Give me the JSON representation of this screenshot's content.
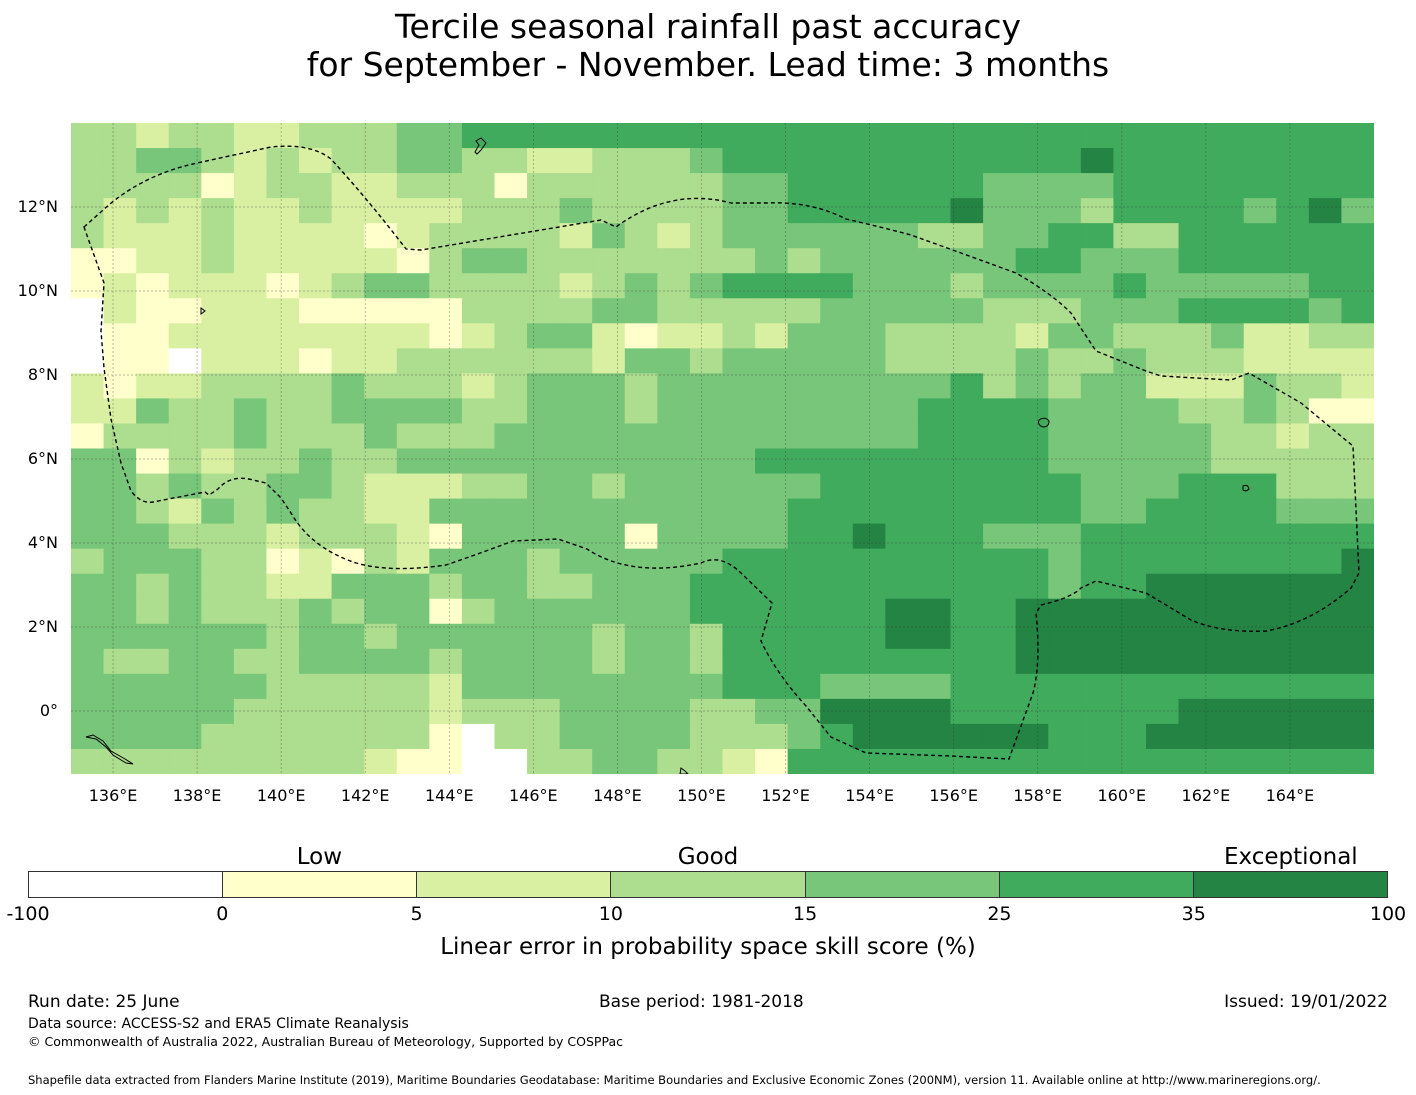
{
  "title": {
    "line1": "Tercile seasonal rainfall past accuracy",
    "line2": "for September - November. Lead time: 3 months"
  },
  "map": {
    "lat_labels": [
      {
        "text": "12°N",
        "lat": 12
      },
      {
        "text": "10°N",
        "lat": 10
      },
      {
        "text": "8°N",
        "lat": 8
      },
      {
        "text": "6°N",
        "lat": 6
      },
      {
        "text": "4°N",
        "lat": 4
      },
      {
        "text": "2°N",
        "lat": 2
      },
      {
        "text": "0°",
        "lat": 0
      }
    ],
    "lon_labels": [
      {
        "text": "136°E",
        "lon": 136
      },
      {
        "text": "138°E",
        "lon": 138
      },
      {
        "text": "140°E",
        "lon": 140
      },
      {
        "text": "142°E",
        "lon": 142
      },
      {
        "text": "144°E",
        "lon": 144
      },
      {
        "text": "146°E",
        "lon": 146
      },
      {
        "text": "148°E",
        "lon": 148
      },
      {
        "text": "150°E",
        "lon": 150
      },
      {
        "text": "152°E",
        "lon": 152
      },
      {
        "text": "154°E",
        "lon": 154
      },
      {
        "text": "156°E",
        "lon": 156
      },
      {
        "text": "158°E",
        "lon": 158
      },
      {
        "text": "160°E",
        "lon": 160
      },
      {
        "text": "162°E",
        "lon": 162
      },
      {
        "text": "164°E",
        "lon": 164
      }
    ],
    "extent": {
      "lon_min": 135.0,
      "lon_max": 166.0,
      "lat_min": -1.5,
      "lat_max": 14.0
    },
    "cell_size_deg": 0.833,
    "levels_legend": "0=<0, 1=0-5, 2=5-10, 3=10-15, 4=15-25, 5=25-35, 6=35-100",
    "grid_rows": [
      "3323322333445555555555555555555555555555",
      "3344323233443322333455555555555655555555",
      "3333123322333133333344555555444455555555",
      "3232322322223334333344555556444355554564",
      "3222322221233332432344444433445533555555",
      "1122322222134433333334344444455444555555",
      "1212221234433332343455554443444454444455",
      "0211222111113333443333344444333444555545",
      "0112222222212344212232444333324433342233",
      "0110222122333333244344444333343343332222",
      "2122333343332344434444444445343442224332",
      "2243343344443344434444444455554444334311",
      "1333343334333444444444444455554444433233",
      "4413233433444444444445555555554444433333",
      "4434334432223344344444455555555444555333",
      "4432434332244444444444555555555445555444",
      "4443332333214444414444556555444555555555",
      "3444331213244434444455555555554555555556",
      "4434332244434433444555555555554556666666",
      "4434333434413444444555555665566666666666",
      "4444443443444444344355555665566666666666",
      "4334433444434444344355555555566666666666",
      "4444443333324444444455544445555555555555",
      "4444433333323334444334466665555555666666",
      "4444333333310334444333456666665556666666",
      "3333333332110033443321555555555555555555"
    ],
    "land_marks": [
      "Guam outline",
      "Palau islands",
      "Pohnpei outline",
      "Kosrae outline",
      "Admiralty Islands"
    ]
  },
  "legend": {
    "category_labels": [
      {
        "text": "Low",
        "pos": 1.5
      },
      {
        "text": "Good",
        "pos": 3.5
      },
      {
        "text": "Exceptional",
        "pos": 6.5
      }
    ],
    "colors": [
      "#ffffff",
      "#ffffcc",
      "#d9f0a3",
      "#addd8e",
      "#78c679",
      "#41ab5d",
      "#238443"
    ],
    "ticks": [
      "-100",
      "0",
      "5",
      "10",
      "15",
      "25",
      "35",
      "100"
    ],
    "title": "Linear error in probability space skill score (%)"
  },
  "footer": {
    "run_date": "Run date: 25 June",
    "base_period": "Base period: 1981-2018",
    "issued": "Issued: 19/01/2022",
    "data_source": "Data source: ACCESS-S2 and ERA5 Climate Reanalysis",
    "copyright": "© Commonwealth of Australia 2022, Australian Bureau of Meteorology, Supported by COSPPac",
    "shapefile": "Shapefile data extracted from Flanders Marine Institute (2019), Maritime Boundaries Geodatabase: Maritime Boundaries and Exclusive Economic Zones (200NM), version 11. Available online at http://www.marineregions.org/."
  }
}
